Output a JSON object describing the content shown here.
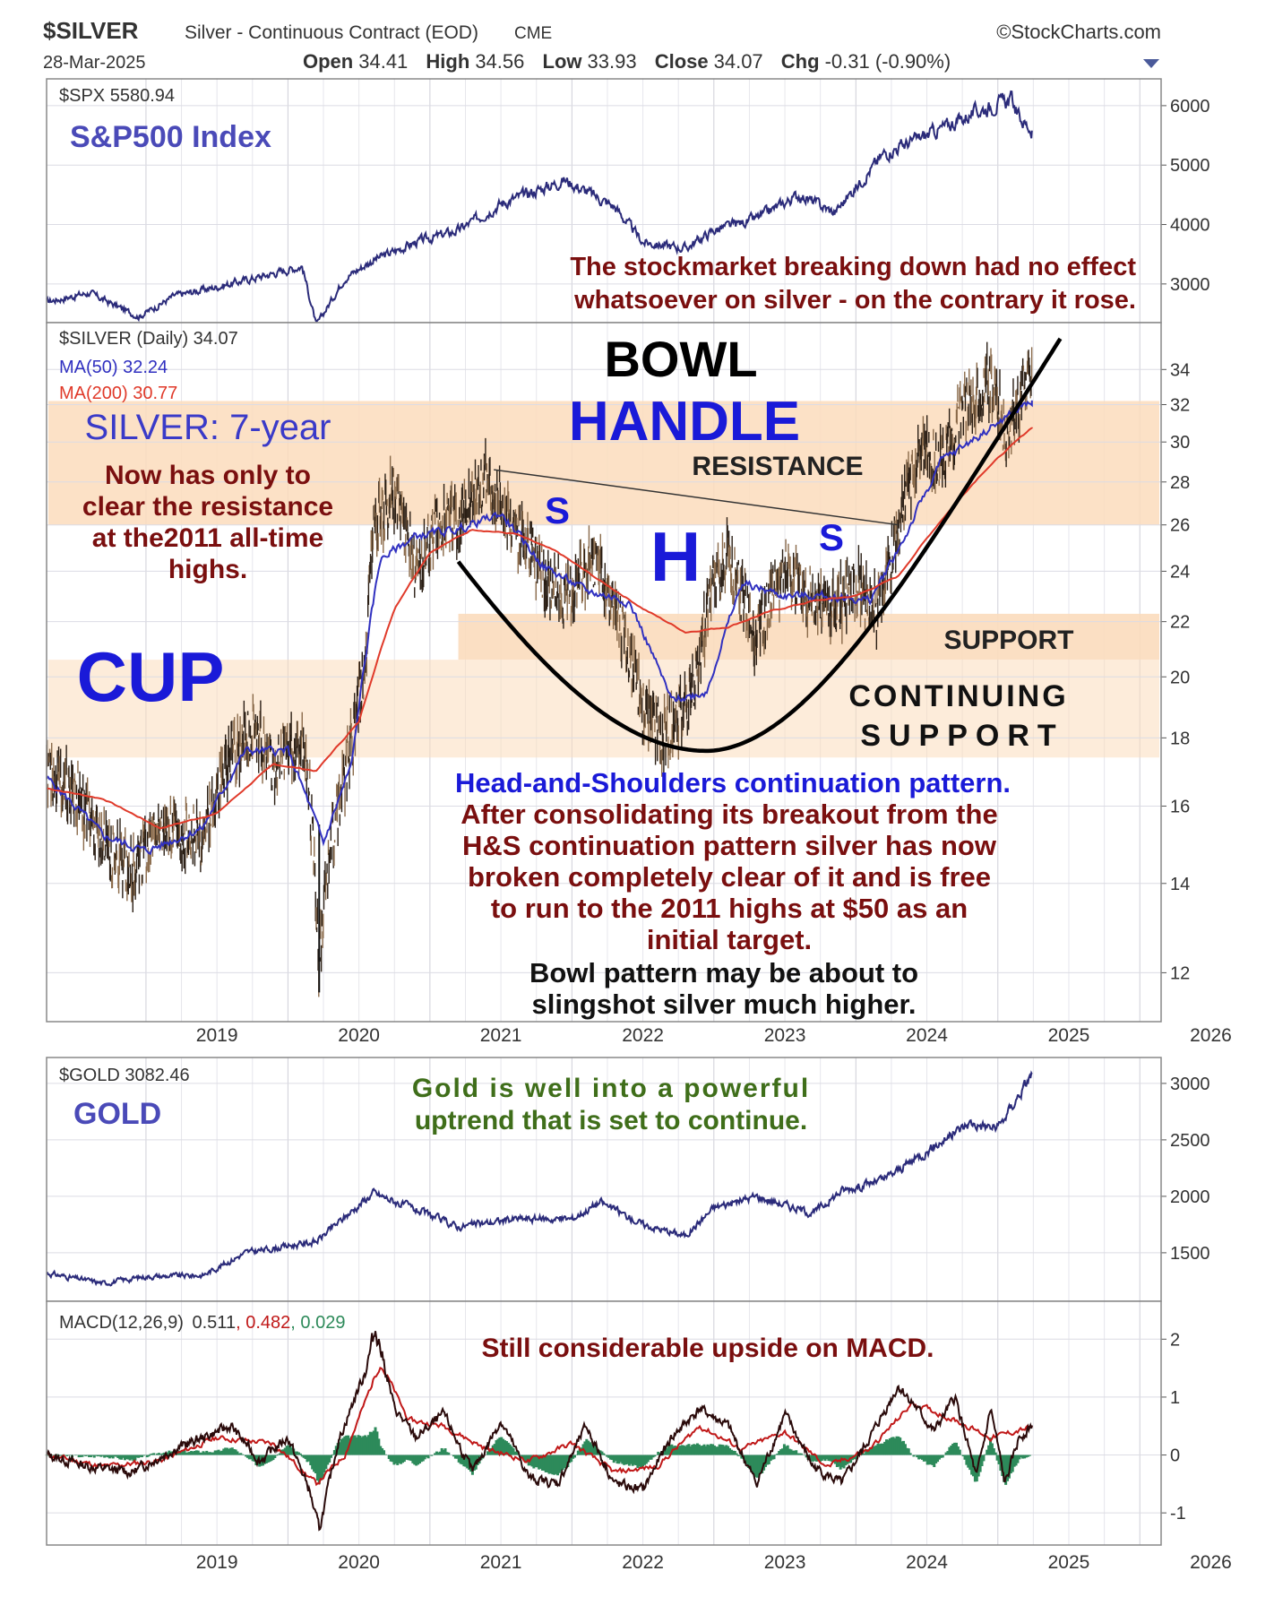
{
  "header": {
    "symbol": "$SILVER",
    "name": "Silver - Continuous Contract (EOD)",
    "exchange": "CME",
    "brand": "©StockCharts.com",
    "date": "28-Mar-2025",
    "open_label": "Open",
    "open": "34.41",
    "high_label": "High",
    "high": "34.56",
    "low_label": "Low",
    "low": "33.93",
    "close_label": "Close",
    "close": "34.07",
    "chg_label": "Chg",
    "chg": "-0.31 (-0.90%)",
    "dropdown_icon": "triangle-down-icon"
  },
  "colors": {
    "spx": "#2b2b7a",
    "silver_bar": "#4a3b2a",
    "ma50": "#3030c0",
    "ma200": "#e03a2a",
    "band": "#fbdcbc",
    "gold": "#2b2b7a",
    "macd": "#2a0a0a",
    "signal": "#c01818",
    "hist": "#2d8a5a",
    "dark_red_text": "#7a0f0f",
    "blue_text": "#1a1ad8",
    "green_text": "#3f6e1a"
  },
  "chart_data": [
    {
      "type": "line",
      "panel": "spx",
      "legend": "$SPX 5580.94",
      "label": "S&P500 Index",
      "annotation": [
        "The stockmarket breaking down had no effect",
        "whatsoever on silver - on the contrary it rose."
      ],
      "x_range": [
        2018.3,
        2026.15
      ],
      "y_range": [
        2500,
        6300
      ],
      "y_ticks": [
        3000,
        4000,
        5000,
        6000
      ],
      "series": [
        {
          "x": [
            2018.3,
            2018.6,
            2018.95,
            2019.2,
            2019.5,
            2019.85,
            2020.1,
            2020.2,
            2020.4,
            2020.6,
            2020.9,
            2021.2,
            2021.5,
            2021.95,
            2022.3,
            2022.5,
            2022.8,
            2023.0,
            2023.3,
            2023.6,
            2023.85,
            2024.2,
            2024.5,
            2024.9,
            2025.1,
            2025.15,
            2025.24
          ],
          "y": [
            2700,
            2850,
            2450,
            2800,
            2950,
            3150,
            3300,
            2300,
            3100,
            3400,
            3700,
            3900,
            4350,
            4750,
            4300,
            3700,
            3600,
            3900,
            4100,
            4500,
            4200,
            5200,
            5500,
            5950,
            6100,
            5800,
            5580
          ]
        }
      ]
    },
    {
      "type": "line",
      "panel": "silver",
      "legend": [
        "$SILVER (Daily) 34.07",
        "MA(50) 32.24",
        "MA(200) 30.77"
      ],
      "x_range": [
        2018.3,
        2026.15
      ],
      "y_range": [
        11.2,
        36.3
      ],
      "y_scale": "log",
      "y_ticks": [
        12,
        14,
        16,
        18,
        20,
        22,
        24,
        26,
        28,
        30,
        32,
        34
      ],
      "x_ticks": [
        "2019",
        "2020",
        "2021",
        "2022",
        "2023",
        "2024",
        "2025",
        "2026"
      ],
      "series": [
        {
          "name": "$SILVER",
          "x": [
            2018.3,
            2018.5,
            2018.7,
            2018.9,
            2019.1,
            2019.4,
            2019.6,
            2019.75,
            2019.9,
            2020.1,
            2020.15,
            2020.22,
            2020.3,
            2020.45,
            2020.55,
            2020.6,
            2020.75,
            2020.9,
            2021.1,
            2021.2,
            2021.4,
            2021.6,
            2021.8,
            2021.95,
            2022.15,
            2022.3,
            2022.5,
            2022.65,
            2022.85,
            2023.0,
            2023.1,
            2023.3,
            2023.5,
            2023.7,
            2023.85,
            2024.0,
            2024.15,
            2024.3,
            2024.45,
            2024.6,
            2024.8,
            2024.95,
            2025.05,
            2025.15,
            2025.24
          ],
          "y": [
            16.8,
            16.4,
            15.0,
            14.3,
            15.4,
            15.2,
            17.5,
            18.2,
            17.2,
            17.9,
            16.5,
            12.2,
            15.0,
            17.8,
            20.5,
            26.0,
            27.5,
            24.0,
            26.5,
            25.8,
            28.2,
            26.0,
            24.0,
            22.8,
            24.5,
            22.5,
            19.0,
            18.0,
            19.5,
            23.5,
            24.5,
            21.5,
            24.0,
            23.0,
            22.5,
            23.5,
            22.5,
            26.0,
            29.5,
            29.0,
            32.5,
            33.5,
            30.5,
            32.0,
            34.07
          ]
        },
        {
          "name": "MA(50)",
          "x": [
            2018.3,
            2018.7,
            2019.0,
            2019.4,
            2019.7,
            2020.0,
            2020.25,
            2020.45,
            2020.65,
            2020.9,
            2021.2,
            2021.5,
            2021.8,
            2022.1,
            2022.4,
            2022.7,
            2022.95,
            2023.2,
            2023.5,
            2023.8,
            2024.1,
            2024.35,
            2024.6,
            2024.9,
            2025.1,
            2025.24
          ],
          "y": [
            16.8,
            15.2,
            14.8,
            15.4,
            17.6,
            17.6,
            15.0,
            17.2,
            24.5,
            25.5,
            25.8,
            26.5,
            24.2,
            23.2,
            22.8,
            19.2,
            19.5,
            23.5,
            23.0,
            23.0,
            22.8,
            25.5,
            29.0,
            30.5,
            31.5,
            32.24
          ]
        },
        {
          "name": "MA(200)",
          "x": [
            2018.3,
            2018.7,
            2019.1,
            2019.5,
            2019.9,
            2020.2,
            2020.5,
            2020.75,
            2021.0,
            2021.3,
            2021.6,
            2021.9,
            2022.2,
            2022.5,
            2022.8,
            2023.1,
            2023.4,
            2023.7,
            2024.0,
            2024.3,
            2024.6,
            2024.9,
            2025.24
          ],
          "y": [
            16.5,
            16.2,
            15.4,
            15.8,
            17.2,
            17.0,
            18.5,
            22.5,
            24.8,
            25.8,
            25.6,
            24.8,
            23.6,
            22.5,
            21.6,
            21.8,
            22.4,
            22.8,
            23.0,
            23.8,
            26.2,
            28.5,
            30.77
          ]
        }
      ],
      "annotations": {
        "bowl": "BOWL",
        "handle": "HANDLE",
        "resistance": "RESISTANCE",
        "silver_title": "SILVER: 7-year",
        "silver_note": [
          "Now has only to",
          "clear the resistance",
          "at the2011 all-time",
          "highs."
        ],
        "s1": "S",
        "h": "H",
        "s2": "S",
        "cup": "CUP",
        "support": "SUPPORT",
        "continuing": [
          "CONTINUING",
          "SUPPORT"
        ],
        "hs_title": "Head-and-Shoulders continuation pattern.",
        "hs_note": [
          "After consolidating its breakout from the",
          "H&S continuation pattern silver has now",
          "broken completely clear of it and is free",
          "to run to the 2011 highs at $50 as an",
          "initial target."
        ],
        "bowl_note": [
          "Bowl pattern may be about to",
          "slingshot silver much higher."
        ]
      }
    },
    {
      "type": "line",
      "panel": "gold",
      "legend": "$GOLD 3082.46",
      "label": "GOLD",
      "annotation": [
        "Gold is well into a powerful",
        "uptrend that is set to continue."
      ],
      "x_range": [
        2018.3,
        2026.15
      ],
      "y_range": [
        1150,
        3150
      ],
      "y_ticks": [
        1500,
        2000,
        2500,
        3000
      ],
      "series": [
        {
          "x": [
            2018.3,
            2018.7,
            2019.0,
            2019.4,
            2019.7,
            2020.0,
            2020.2,
            2020.6,
            2020.9,
            2021.2,
            2021.6,
            2022.0,
            2022.2,
            2022.5,
            2022.8,
            2023.0,
            2023.3,
            2023.7,
            2023.9,
            2024.2,
            2024.5,
            2024.8,
            2025.0,
            2025.24
          ],
          "y": [
            1320,
            1230,
            1290,
            1300,
            1500,
            1560,
            1600,
            2030,
            1880,
            1730,
            1800,
            1800,
            1950,
            1750,
            1650,
            1900,
            2000,
            1850,
            2050,
            2150,
            2400,
            2650,
            2600,
            3082
          ]
        }
      ]
    },
    {
      "type": "line",
      "panel": "macd",
      "legend_label": "MACD(12,26,9)",
      "legend_values": [
        "0.511",
        "0.482",
        "0.029"
      ],
      "annotation": "Still considerable upside on MACD.",
      "x_range": [
        2018.3,
        2026.15
      ],
      "y_range": [
        -1.4,
        2.5
      ],
      "y_ticks": [
        -1,
        0,
        1,
        2
      ],
      "x_ticks": [
        "2019",
        "2020",
        "2021",
        "2022",
        "2023",
        "2024",
        "2025",
        "2026"
      ],
      "series": [
        {
          "name": "MACD",
          "x": [
            2018.3,
            2018.6,
            2018.9,
            2019.2,
            2019.4,
            2019.6,
            2019.8,
            2020.0,
            2020.15,
            2020.22,
            2020.35,
            2020.55,
            2020.62,
            2020.75,
            2020.9,
            2021.1,
            2021.3,
            2021.5,
            2021.7,
            2021.9,
            2022.1,
            2022.3,
            2022.5,
            2022.7,
            2022.9,
            2023.1,
            2023.3,
            2023.5,
            2023.7,
            2023.9,
            2024.1,
            2024.3,
            2024.4,
            2024.55,
            2024.7,
            2024.85,
            2024.95,
            2025.05,
            2025.15,
            2025.24
          ],
          "y": [
            0.0,
            -0.2,
            -0.3,
            0.1,
            0.3,
            0.5,
            -0.1,
            0.3,
            -0.6,
            -1.3,
            0.2,
            1.5,
            2.2,
            0.8,
            0.3,
            0.7,
            -0.3,
            0.6,
            -0.4,
            -0.5,
            0.5,
            -0.5,
            -0.6,
            0.3,
            0.8,
            0.5,
            -0.5,
            0.7,
            -0.2,
            -0.5,
            0.3,
            1.2,
            0.9,
            0.4,
            1.0,
            -0.4,
            0.8,
            -0.5,
            0.3,
            0.511
          ]
        },
        {
          "name": "Signal",
          "x": [
            2018.3,
            2018.7,
            2019.1,
            2019.5,
            2019.9,
            2020.2,
            2020.4,
            2020.65,
            2020.85,
            2021.1,
            2021.4,
            2021.7,
            2022.0,
            2022.3,
            2022.6,
            2022.9,
            2023.2,
            2023.5,
            2023.8,
            2024.1,
            2024.4,
            2024.7,
            2024.95,
            2025.24
          ],
          "y": [
            0.0,
            -0.2,
            -0.1,
            0.3,
            0.2,
            -0.5,
            0.0,
            1.6,
            0.6,
            0.5,
            0.1,
            -0.1,
            0.2,
            -0.3,
            -0.2,
            0.5,
            0.1,
            0.4,
            -0.2,
            0.1,
            0.9,
            0.6,
            0.3,
            0.482
          ]
        }
      ]
    }
  ]
}
